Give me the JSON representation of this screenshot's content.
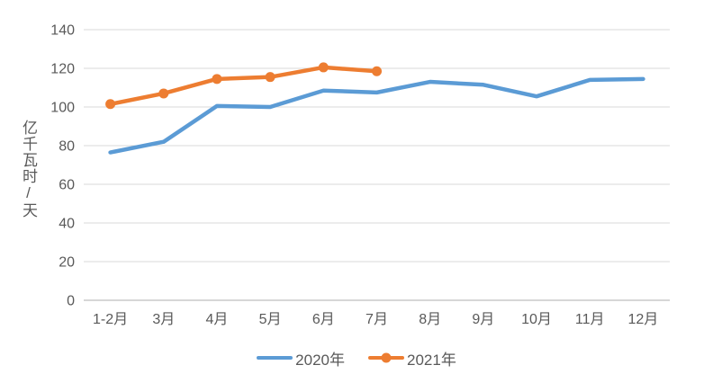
{
  "chart_data": {
    "type": "line",
    "categories": [
      "1-2月",
      "3月",
      "4月",
      "5月",
      "6月",
      "7月",
      "8月",
      "9月",
      "10月",
      "11月",
      "12月"
    ],
    "series": [
      {
        "name": "2020年",
        "color": "#5B9BD5",
        "marker": false,
        "values": [
          76.5,
          82,
          100.5,
          100,
          108.5,
          107.5,
          113,
          111.5,
          105.5,
          114,
          114.5
        ]
      },
      {
        "name": "2021年",
        "color": "#ED7D31",
        "marker": true,
        "values": [
          101.5,
          107,
          114.5,
          115.5,
          120.5,
          118.5
        ]
      }
    ],
    "title": "",
    "xlabel": "",
    "ylabel": "亿千瓦时/天",
    "ylim": [
      0,
      140
    ],
    "ytick_step": 20,
    "grid": true,
    "legend_position": "bottom"
  },
  "styles": {
    "grid_color": "#D9D9D9",
    "axis_color": "#BFBFBF",
    "tick_color": "#595959"
  }
}
